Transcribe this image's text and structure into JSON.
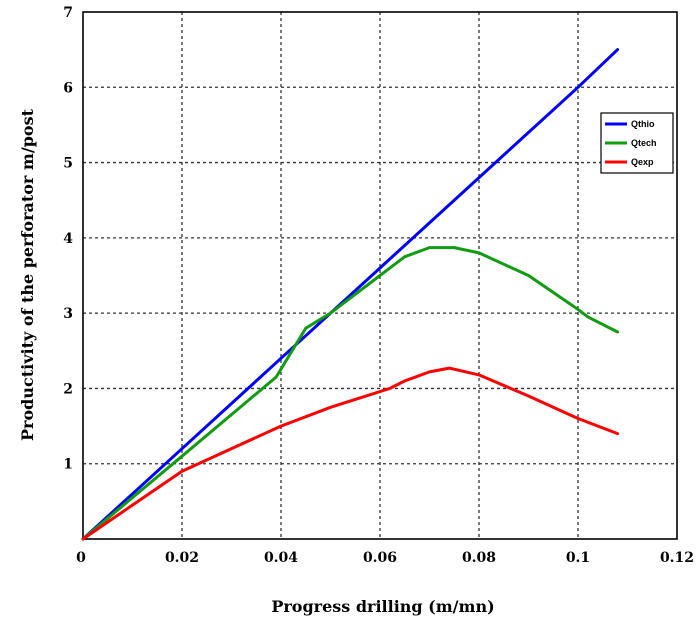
{
  "chart_data": {
    "type": "line",
    "title": "",
    "xlabel": "Progress drilling (m/mn)",
    "ylabel": "Productivity of the perforator m/post",
    "xlim": [
      0,
      0.12
    ],
    "ylim": [
      0,
      7
    ],
    "xticks": [
      0,
      0.02,
      0.04,
      0.06,
      0.08,
      0.1,
      0.12
    ],
    "xtick_labels": [
      "0",
      "0.02",
      "0.04",
      "0.06",
      "0.08",
      "0.1",
      "0.12"
    ],
    "yticks": [
      1,
      2,
      3,
      4,
      5,
      6,
      7
    ],
    "ytick_labels": [
      "1",
      "2",
      "3",
      "4",
      "5",
      "6",
      "7"
    ],
    "grid": true,
    "legend_position": "top-right",
    "series": [
      {
        "name": "Qthio",
        "color": "#0000ff",
        "x": [
          0,
          0.02,
          0.04,
          0.06,
          0.08,
          0.1,
          0.108
        ],
        "y": [
          0,
          1.2,
          2.4,
          3.6,
          4.8,
          6.0,
          6.5
        ]
      },
      {
        "name": "Qtech",
        "color": "#119b11",
        "x": [
          0,
          0.02,
          0.039,
          0.045,
          0.05,
          0.06,
          0.065,
          0.07,
          0.075,
          0.08,
          0.09,
          0.1,
          0.102,
          0.108
        ],
        "y": [
          0,
          1.1,
          2.15,
          2.8,
          3.0,
          3.5,
          3.75,
          3.87,
          3.87,
          3.8,
          3.5,
          3.05,
          2.95,
          2.75
        ]
      },
      {
        "name": "Qexp",
        "color": "#ff0000",
        "x": [
          0,
          0.02,
          0.04,
          0.05,
          0.062,
          0.065,
          0.07,
          0.074,
          0.08,
          0.09,
          0.1,
          0.108
        ],
        "y": [
          0,
          0.9,
          1.5,
          1.75,
          2.0,
          2.1,
          2.22,
          2.27,
          2.18,
          1.9,
          1.6,
          1.4
        ]
      }
    ]
  }
}
